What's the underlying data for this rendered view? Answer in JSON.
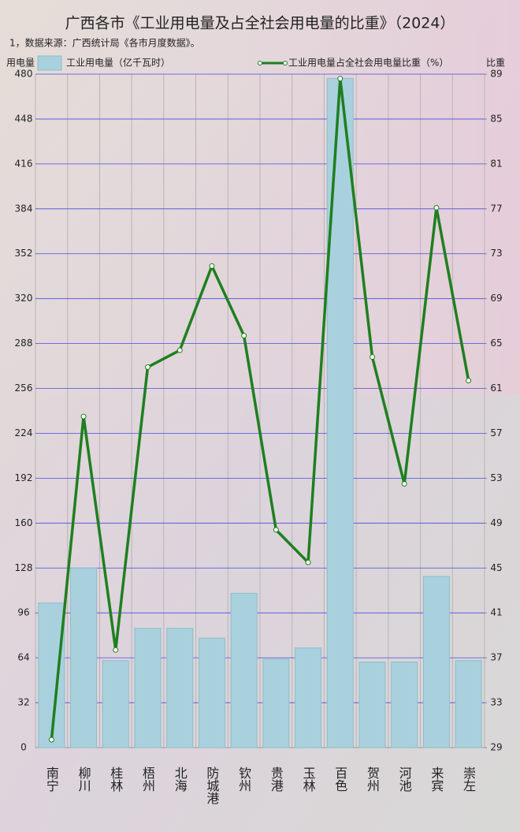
{
  "chart_data": {
    "type": "bar_line",
    "title": "广西各市《工业用电量及占全社会用电量的比重》（2024）",
    "subtitle": "1，数据来源：广西统计局《各市月度数据》。",
    "ylabel": "用电量",
    "y2label": "比重",
    "categories": [
      "南宁",
      "柳川",
      "桂林",
      "梧州",
      "北海",
      "防城港",
      "钦州",
      "贵港",
      "玉林",
      "百色",
      "贺州",
      "河池",
      "来宾",
      "崇左"
    ],
    "series": [
      {
        "name": "工业用电量（亿千瓦时）",
        "type": "bar",
        "color": "#a9d1dd",
        "values": [
          103,
          128,
          62,
          85,
          85,
          78,
          110,
          63,
          71,
          477,
          61,
          61,
          122,
          62
        ]
      },
      {
        "name": "工业用电量占全社会用电量比重（%）",
        "type": "line",
        "axis": "y2",
        "color": "#1f7f1f",
        "values": [
          29.7,
          58.5,
          37.7,
          62.9,
          64.4,
          71.9,
          65.7,
          48.4,
          45.5,
          88.6,
          63.8,
          52.5,
          77.1,
          61.7
        ]
      }
    ],
    "ylim": [
      0,
      480
    ],
    "yticks": [
      0,
      32,
      64,
      96,
      128,
      160,
      192,
      224,
      256,
      288,
      320,
      352,
      384,
      416,
      448,
      480
    ],
    "y2lim": [
      29,
      89
    ],
    "y2ticks": [
      29,
      33,
      37,
      41,
      45,
      49,
      53,
      57,
      61,
      65,
      69,
      73,
      77,
      81,
      85,
      89
    ],
    "grid": true
  }
}
